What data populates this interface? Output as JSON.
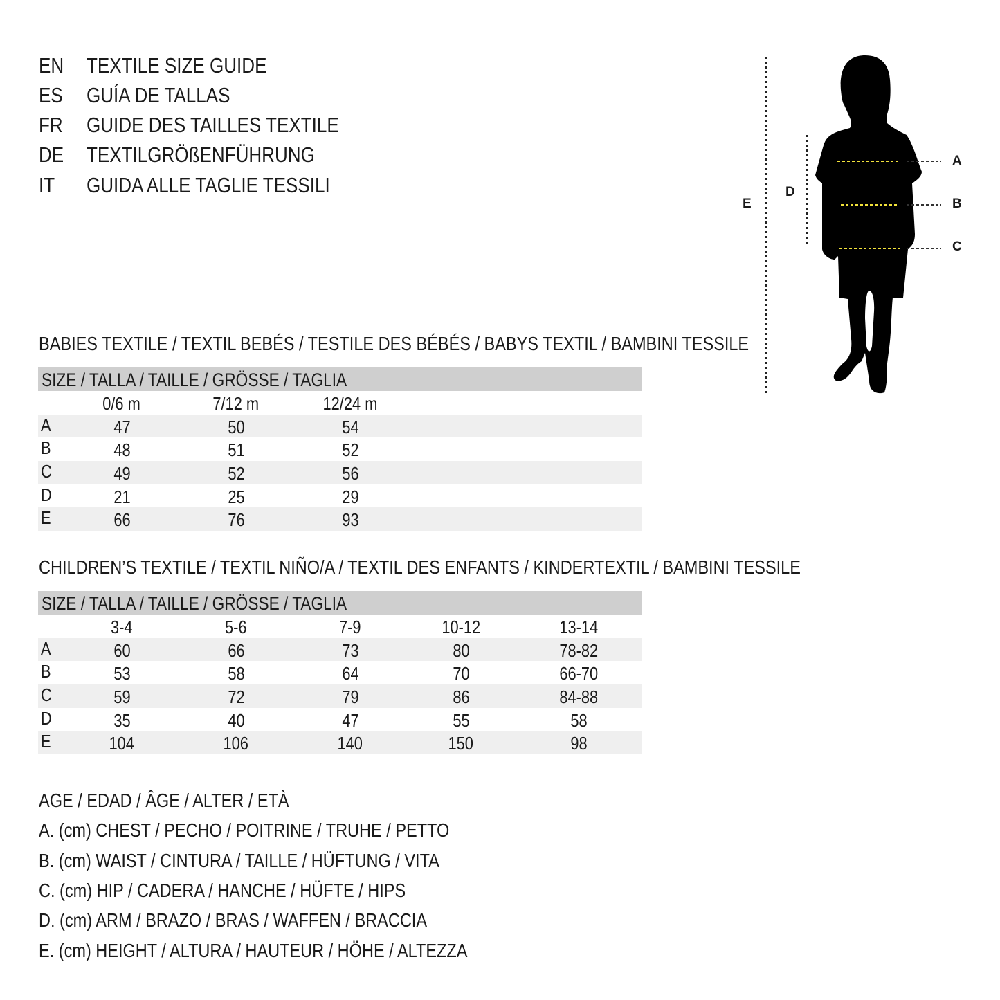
{
  "titles": [
    {
      "code": "EN",
      "text": "TEXTILE SIZE GUIDE"
    },
    {
      "code": "ES",
      "text": "GUÍA DE TALLAS"
    },
    {
      "code": "FR",
      "text": "GUIDE DES TAILLES TEXTILE"
    },
    {
      "code": "DE",
      "text": "TEXTILGRÖßENFÜHRUNG"
    },
    {
      "code": "IT",
      "text": "GUIDA ALLE TAGLIE TESSILI"
    }
  ],
  "figure": {
    "labels": {
      "a": "A",
      "b": "B",
      "c": "C",
      "d": "D",
      "e": "E"
    },
    "measure_line_color": "#f2e23a"
  },
  "babies": {
    "heading": "BABIES TEXTILE / TEXTIL BEBÉS / TESTILE DES BÉBÉS / BABYS TEXTIL / BAMBINI TESSILE",
    "size_header": "SIZE / TALLA / TAILLE / GRÖSSE / TAGLIA",
    "columns": [
      "0/6 m",
      "7/12 m",
      "12/24 m"
    ],
    "rows": [
      {
        "label": "A",
        "values": [
          "47",
          "50",
          "54"
        ]
      },
      {
        "label": "B",
        "values": [
          "48",
          "51",
          "52"
        ]
      },
      {
        "label": "C",
        "values": [
          "49",
          "52",
          "56"
        ]
      },
      {
        "label": "D",
        "values": [
          "21",
          "25",
          "29"
        ]
      },
      {
        "label": "E",
        "values": [
          "66",
          "76",
          "93"
        ]
      }
    ]
  },
  "children": {
    "heading": "CHILDREN’S TEXTILE / TEXTIL NIÑO/A / TEXTIL DES ENFANTS / KINDERTEXTIL / BAMBINI TESSILE",
    "size_header": "SIZE / TALLA / TAILLE / GRÖSSE / TAGLIA",
    "columns": [
      "3-4",
      "5-6",
      "7-9",
      "10-12",
      "13-14"
    ],
    "rows": [
      {
        "label": "A",
        "values": [
          "60",
          "66",
          "73",
          "80",
          "78-82"
        ]
      },
      {
        "label": "B",
        "values": [
          "53",
          "58",
          "64",
          "70",
          "66-70"
        ]
      },
      {
        "label": "C",
        "values": [
          "59",
          "72",
          "79",
          "86",
          "84-88"
        ]
      },
      {
        "label": "D",
        "values": [
          "35",
          "40",
          "47",
          "55",
          "58"
        ]
      },
      {
        "label": "E",
        "values": [
          "104",
          "106",
          "140",
          "150",
          "98"
        ]
      }
    ]
  },
  "legend": [
    "AGE / EDAD / ÂGE / ALTER / ETÀ",
    "A. (cm) CHEST / PECHO / POITRINE / TRUHE / PETTO",
    "B. (cm) WAIST / CINTURA / TAILLE / HÜFTUNG / VITA",
    "C. (cm) HIP / CADERA / HANCHE / HÜFTE / HIPS",
    "D. (cm) ARM / BRAZO / BRAS / WAFFEN / BRACCIA",
    "E. (cm) HEIGHT / ALTURA / HAUTEUR / HÖHE / ALTEZZA"
  ]
}
